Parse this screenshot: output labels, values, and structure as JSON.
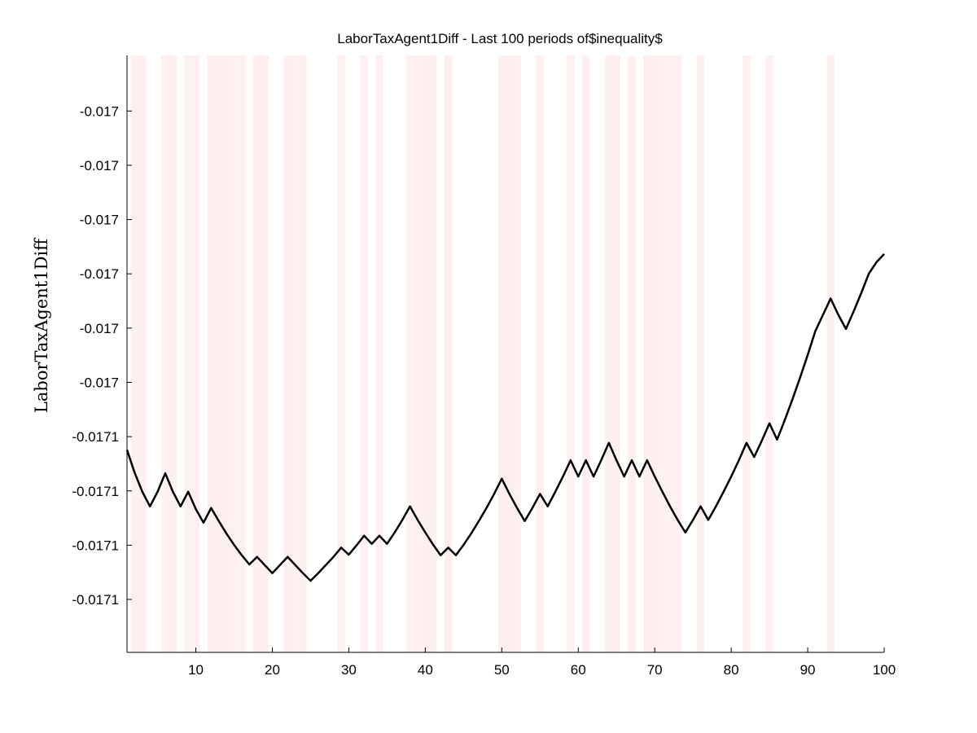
{
  "chart_data": {
    "type": "line",
    "title": "LaborTaxAgent1Diff - Last 100 periods of$inequality$",
    "xlabel": "",
    "ylabel": "LaborTaxAgent1Diff",
    "xlim": [
      1,
      100
    ],
    "ylim": [
      -0.017106,
      -0.016996
    ],
    "x_ticks": [
      10,
      20,
      30,
      40,
      50,
      60,
      70,
      80,
      90,
      100
    ],
    "y_ticks": [
      {
        "value": -0.01700625,
        "label": "-0.017"
      },
      {
        "value": -0.01701625,
        "label": "-0.017"
      },
      {
        "value": -0.01702625,
        "label": "-0.017"
      },
      {
        "value": -0.01703625,
        "label": "-0.017"
      },
      {
        "value": -0.01704625,
        "label": "-0.017"
      },
      {
        "value": -0.01705625,
        "label": "-0.017"
      },
      {
        "value": -0.01706625,
        "label": "-0.0171"
      },
      {
        "value": -0.01707625,
        "label": "-0.0171"
      },
      {
        "value": -0.01708625,
        "label": "-0.0171"
      },
      {
        "value": -0.01709625,
        "label": "-0.0171"
      }
    ],
    "grid": false,
    "line_color": "#000000",
    "shade_color": "#fff0f0",
    "shaded_periods": [
      2,
      3,
      6,
      7,
      9,
      10,
      12,
      13,
      14,
      15,
      16,
      18,
      19,
      22,
      23,
      24,
      29,
      32,
      34,
      38,
      39,
      40,
      41,
      43,
      50,
      51,
      52,
      55,
      59,
      61,
      64,
      65,
      67,
      69,
      70,
      71,
      72,
      73,
      76,
      82,
      85,
      93
    ],
    "series": [
      {
        "x": [
          1,
          2,
          3,
          4,
          5,
          6,
          7,
          8,
          9,
          10,
          11,
          12,
          13,
          14,
          15,
          16,
          17,
          18,
          19,
          20,
          21,
          22,
          23,
          24,
          25,
          26,
          27,
          28,
          29,
          30,
          31,
          32,
          33,
          34,
          35,
          36,
          37,
          38,
          39,
          40,
          41,
          42,
          43,
          44,
          45,
          46,
          47,
          48,
          49,
          50,
          51,
          52,
          53,
          54,
          55,
          56,
          57,
          58,
          59,
          60,
          61,
          62,
          63,
          64,
          65,
          66,
          67,
          68,
          69,
          70,
          71,
          72,
          73,
          74,
          75,
          76,
          77,
          78,
          79,
          80,
          81,
          82,
          83,
          84,
          85,
          86,
          87,
          88,
          89,
          90,
          91,
          92,
          93,
          94,
          95,
          96,
          97,
          98,
          99,
          100
        ],
        "values": [
          -0.0170687,
          -0.0170729,
          -0.0170764,
          -0.0170791,
          -0.0170764,
          -0.017073,
          -0.0170764,
          -0.0170791,
          -0.0170764,
          -0.0170796,
          -0.0170821,
          -0.0170794,
          -0.0170818,
          -0.0170841,
          -0.0170862,
          -0.0170881,
          -0.0170898,
          -0.0170884,
          -0.0170899,
          -0.0170914,
          -0.0170899,
          -0.0170884,
          -0.0170899,
          -0.0170914,
          -0.0170928,
          -0.0170914,
          -0.0170899,
          -0.0170884,
          -0.0170867,
          -0.017088,
          -0.0170863,
          -0.0170845,
          -0.017086,
          -0.0170845,
          -0.017086,
          -0.0170839,
          -0.0170816,
          -0.0170791,
          -0.0170816,
          -0.0170839,
          -0.0170861,
          -0.0170881,
          -0.0170867,
          -0.0170881,
          -0.0170862,
          -0.0170841,
          -0.0170818,
          -0.0170794,
          -0.0170768,
          -0.017074,
          -0.0170768,
          -0.0170794,
          -0.0170818,
          -0.0170794,
          -0.0170768,
          -0.0170791,
          -0.0170764,
          -0.0170736,
          -0.0170706,
          -0.0170736,
          -0.0170706,
          -0.0170736,
          -0.0170706,
          -0.0170674,
          -0.0170706,
          -0.0170736,
          -0.0170706,
          -0.0170736,
          -0.0170706,
          -0.0170736,
          -0.0170764,
          -0.0170791,
          -0.0170816,
          -0.0170839,
          -0.0170816,
          -0.0170791,
          -0.0170816,
          -0.0170791,
          -0.0170764,
          -0.0170736,
          -0.0170706,
          -0.0170674,
          -0.01707,
          -0.017067,
          -0.0170638,
          -0.0170668,
          -0.0170632,
          -0.0170594,
          -0.0170554,
          -0.0170512,
          -0.0170468,
          -0.0170438,
          -0.0170408,
          -0.0170438,
          -0.0170464,
          -0.0170432,
          -0.0170398,
          -0.0170362,
          -0.0170341,
          -0.0170326
        ]
      }
    ]
  }
}
